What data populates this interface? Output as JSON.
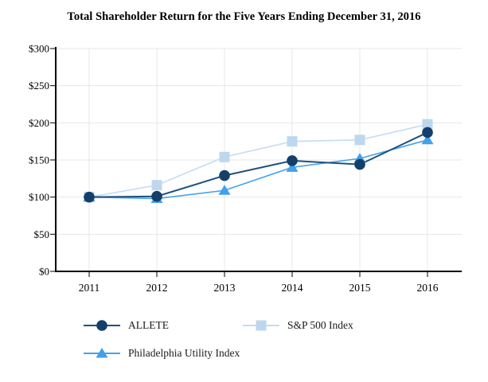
{
  "title": "Total Shareholder Return for the Five Years Ending December 31, 2016",
  "chart_data": {
    "type": "line",
    "title": "Total Shareholder Return for the Five Years Ending December 31, 2016",
    "categories": [
      "2011",
      "2012",
      "2013",
      "2014",
      "2015",
      "2016"
    ],
    "series": [
      {
        "name": "ALLETE",
        "marker": "circle",
        "line_color": "#1E5180",
        "marker_color": "#153F6B",
        "values": [
          100,
          101,
          129,
          149,
          144,
          187
        ]
      },
      {
        "name": "S&P 500 Index",
        "marker": "square",
        "line_color": "#C3DCF3",
        "marker_color": "#BDD7EE",
        "values": [
          100,
          116,
          154,
          175,
          177,
          198
        ]
      },
      {
        "name": "Philadelphia Utility Index",
        "marker": "triangle",
        "line_color": "#45A2EC",
        "marker_color": "#42A0EC",
        "values": [
          100,
          98,
          109,
          140,
          152,
          177
        ]
      }
    ],
    "xlabel": "",
    "ylabel": "",
    "ylim": [
      0,
      300
    ],
    "y_ticks": [
      {
        "value": 0,
        "label": "$0"
      },
      {
        "value": 50,
        "label": "$50"
      },
      {
        "value": 100,
        "label": "$100"
      },
      {
        "value": 150,
        "label": "$150"
      },
      {
        "value": 200,
        "label": "$200"
      },
      {
        "value": 250,
        "label": "$250"
      },
      {
        "value": 300,
        "label": "$300"
      }
    ],
    "grid": true,
    "legend_position": "bottom"
  },
  "colors": {
    "axis": "#000000",
    "gridline": "#E7E7E7",
    "text": "#000000",
    "background": "#FFFFFF"
  }
}
